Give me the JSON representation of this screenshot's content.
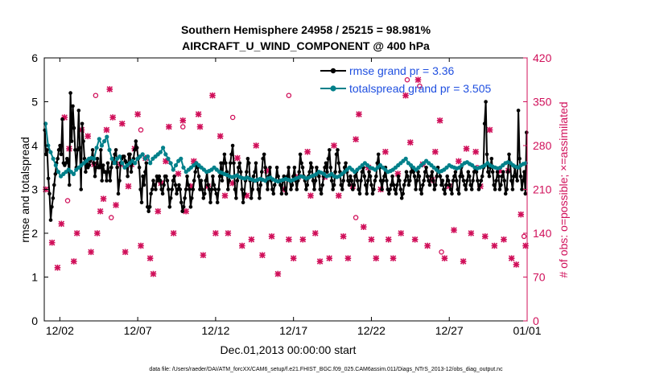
{
  "chart_data": {
    "type": "line",
    "title_line1": "Southern Hemisphere 24958 / 25215 = 98.981%",
    "title_line2": "AIRCRAFT_U_WIND_COMPONENT @ 400 hPa",
    "xlabel": "Dec.01,2013 00:00:00 start",
    "ylabel_left": "rmse and totalspread",
    "ylabel_right": "# of obs: o=possible; ×=assimilated",
    "xlim": [
      0,
      31
    ],
    "ylim_left": [
      0,
      6
    ],
    "ylim_right": [
      0,
      420
    ],
    "x_ticks": [
      1,
      6,
      11,
      16,
      21,
      26,
      31
    ],
    "x_tick_labels": [
      "12/02",
      "12/07",
      "12/12",
      "12/17",
      "12/22",
      "12/27",
      "01/01"
    ],
    "y_ticks_left": [
      "0",
      "1",
      "2",
      "3",
      "4",
      "5",
      "6"
    ],
    "y_ticks_right": [
      "0",
      "70",
      "140",
      "210",
      "280",
      "350",
      "420"
    ],
    "footer": "data file: /Users/raeder/DAI/ATM_forcXX/CAM6_setup/f.e21.FHIST_BGC.f09_025.CAM6assim.011/Diags_NTrS_2013-12/obs_diag_output.nc",
    "colors": {
      "rmse": "#000000",
      "spread": "#00808a",
      "obs": "#d0105a",
      "legend_text": "#1f4fe0"
    },
    "series": [
      {
        "name": "rmse grand pr = 3.36",
        "key": "rmse",
        "values": [
          4.35,
          3.8,
          3.9,
          3.25,
          2.9,
          2.3,
          2.6,
          2.8,
          3.1,
          3.35,
          3.6,
          3.7,
          3.9,
          4.0,
          3.8,
          4.6,
          3.6,
          3.55,
          3.6,
          3.7,
          3.65,
          3.1,
          5.2,
          4.1,
          4.9,
          4.4,
          3.9,
          3.5,
          3.9,
          4.8,
          3.95,
          3.0,
          4.5,
          4.1,
          3.7,
          3.4,
          3.6,
          3.5,
          3.55,
          3.65,
          3.7,
          3.9,
          3.6,
          3.3,
          3.5,
          3.7,
          3.5,
          3.5,
          3.9,
          3.2,
          3.55,
          3.4,
          3.4,
          3.2,
          3.6,
          3.4,
          3.2,
          3.5,
          3.7,
          3.6,
          3.8,
          3.9,
          3.5,
          2.9,
          3.2,
          3.6,
          3.7,
          3.75,
          3.75,
          3.65,
          3.6,
          3.3,
          3.8,
          3.8,
          3.4,
          3.6,
          3.7,
          3.9,
          4.1,
          3.95,
          3.7,
          3.5,
          3.0,
          2.7,
          3.3,
          3.1,
          3.4,
          3.6,
          2.6,
          2.5,
          2.6,
          2.9,
          3.0,
          3.2,
          3.1,
          3.0,
          3.3,
          3.2,
          3.3,
          3.2,
          3.0,
          2.9,
          3.1,
          3.3,
          3.3,
          3.2,
          3.0,
          2.6,
          2.8,
          3.0,
          3.2,
          3.3,
          3.1,
          2.9,
          3.0,
          3.1,
          3.0,
          2.7,
          2.5,
          2.6,
          2.8,
          3.0,
          3.3,
          3.1,
          3.0,
          2.6,
          2.8,
          3.0,
          3.2,
          3.4,
          3.6,
          3.5,
          3.3,
          3.0,
          3.2,
          3.0,
          2.8,
          2.9,
          3.2,
          3.4,
          3.1,
          3.0,
          2.7,
          3.0,
          3.3,
          3.1,
          3.0,
          2.9,
          2.7,
          3.0,
          3.3,
          3.6,
          3.2,
          3.6,
          3.8,
          3.6,
          3.4,
          3.0,
          3.2,
          3.6,
          3.8,
          4.0,
          3.6,
          3.0,
          2.8,
          3.2,
          3.5,
          3.6,
          3.4,
          3.0,
          2.7,
          2.9,
          3.2,
          3.4,
          3.7,
          3.6,
          3.2,
          2.8,
          3.0,
          3.3,
          3.4,
          3.6,
          3.2,
          3.0,
          2.8,
          3.1,
          3.4,
          3.7,
          3.8,
          3.5,
          3.2,
          3.0,
          3.3,
          3.5,
          3.2,
          3.0,
          2.9,
          3.1,
          3.2,
          3.5,
          3.3,
          3.2,
          3.1,
          2.9,
          3.2,
          3.3,
          3.0,
          2.9,
          3.3,
          3.5,
          3.2,
          3.0,
          3.1,
          3.3,
          3.5,
          3.2,
          3.0,
          3.2,
          3.4,
          3.8,
          3.6,
          3.5,
          3.3,
          3.2,
          3.0,
          3.1,
          3.3,
          3.4,
          3.6,
          3.5,
          3.2,
          3.0,
          3.2,
          3.5,
          3.4,
          3.3,
          3.0,
          2.9,
          3.1,
          3.3,
          3.5,
          3.6,
          3.4,
          3.7,
          3.9,
          3.5,
          3.2,
          3.0,
          3.1,
          3.4,
          3.8,
          3.9,
          3.6,
          3.4,
          3.1,
          3.0,
          3.2,
          3.5,
          3.6,
          3.4,
          3.2,
          3.1,
          3.3,
          3.2,
          3.0,
          3.1,
          3.3,
          3.4,
          3.2,
          3.0,
          2.9,
          3.2,
          3.4,
          3.5,
          3.3,
          3.1,
          2.9,
          3.2,
          3.4,
          3.3,
          3.1,
          2.9,
          3.0,
          3.2,
          3.3,
          3.6,
          3.8,
          3.5,
          3.2,
          3.0,
          3.2,
          3.3,
          3.5,
          3.2,
          3.0,
          2.9,
          3.0,
          3.1,
          3.3,
          3.1,
          3.0,
          2.9,
          3.1,
          3.3,
          3.2,
          3.0,
          2.8,
          2.9,
          3.1,
          3.2,
          3.4,
          3.3,
          3.1,
          3.2,
          3.4,
          3.5,
          3.4,
          3.3,
          3.0,
          3.2,
          3.4,
          3.3,
          3.0,
          2.9,
          3.1,
          3.2,
          3.4,
          3.5,
          3.3,
          3.2,
          3.1,
          3.3,
          3.4,
          3.2,
          3.0,
          3.1,
          3.3,
          3.5,
          3.4,
          3.3,
          3.1,
          3.2,
          3.0,
          2.9,
          3.1,
          3.3,
          3.2,
          3.1,
          3.0,
          2.9,
          3.2,
          3.3,
          3.4,
          3.2,
          3.0,
          2.9,
          3.3,
          3.5,
          3.3,
          3.2,
          3.1,
          3.0,
          3.2,
          3.4,
          3.3,
          3.1,
          3.0,
          3.2,
          3.4,
          3.5,
          3.4,
          3.2,
          3.0,
          3.1,
          3.2,
          3.3,
          3.5,
          4.5,
          5.0,
          3.8,
          3.4,
          3.3,
          3.5,
          3.7,
          3.4,
          3.1,
          3.0,
          3.2,
          3.4,
          3.3,
          3.0,
          3.1,
          3.3,
          3.4,
          3.2,
          2.9,
          3.0,
          3.4,
          3.8,
          3.6,
          3.2,
          3.0,
          3.3,
          3.5,
          3.3,
          3.2,
          4.8,
          3.7,
          3.3,
          3.0,
          3.2,
          3.4,
          2.9,
          4.3
        ]
      },
      {
        "name": "totalspread grand pr = 3.505",
        "key": "spread",
        "values": [
          4.5,
          4.0,
          3.85,
          3.7,
          3.55,
          3.4,
          3.3,
          3.35,
          3.4,
          3.45,
          3.4,
          3.35,
          3.45,
          3.5,
          3.55,
          3.6,
          3.65,
          3.7,
          3.72,
          3.7,
          3.95,
          4.15,
          4.0,
          4.1,
          4.2,
          3.9,
          3.7,
          3.6,
          3.7,
          3.75,
          3.6,
          3.5,
          3.55,
          3.6,
          3.65,
          3.6,
          3.7,
          3.75,
          3.8,
          3.7,
          3.75,
          3.6,
          3.7,
          3.75,
          3.8,
          3.85,
          3.95,
          3.8,
          3.7,
          3.6,
          3.45,
          3.55,
          3.65,
          3.7,
          3.5,
          3.4,
          3.45,
          3.5,
          3.55,
          3.6,
          3.55,
          3.5,
          3.45,
          3.4,
          3.42,
          3.45,
          3.5,
          3.45,
          3.4,
          3.38,
          3.35,
          3.33,
          3.3,
          3.28,
          3.3,
          3.32,
          3.28,
          3.26,
          3.25,
          3.27,
          3.24,
          3.22,
          3.2,
          3.22,
          3.24,
          3.22,
          3.2,
          3.25,
          3.27,
          3.23,
          3.2,
          3.18,
          3.2,
          3.22,
          3.24,
          3.22,
          3.2,
          3.22,
          3.25,
          3.27,
          3.3,
          3.28,
          3.25,
          3.27,
          3.3,
          3.32,
          3.35,
          3.4,
          3.38,
          3.35,
          3.3,
          3.32,
          3.35,
          3.3,
          3.28,
          3.3,
          3.35,
          3.4,
          3.45,
          3.5,
          3.45,
          3.4,
          3.45,
          3.5,
          3.55,
          3.6,
          3.55,
          3.5,
          3.48,
          3.45,
          3.5,
          3.55,
          3.5,
          3.45,
          3.4,
          3.42,
          3.45,
          3.5,
          3.55,
          3.6,
          3.65,
          3.7,
          3.6,
          3.55,
          3.5,
          3.45,
          3.5,
          3.55,
          3.6,
          3.65,
          3.6,
          3.55,
          3.5,
          3.45,
          3.4,
          3.42,
          3.45,
          3.5,
          3.55,
          3.52,
          3.5,
          3.48,
          3.5,
          3.55,
          3.6,
          3.62,
          3.58,
          3.55,
          3.5,
          3.48,
          3.5,
          3.52,
          3.55,
          3.6,
          3.55,
          3.52,
          3.5,
          3.48,
          3.5,
          3.55,
          3.6,
          3.62,
          3.6,
          3.55,
          3.52,
          3.5,
          3.55,
          3.58,
          3.6
        ]
      }
    ],
    "obs_markers": [
      [
        0.1,
        210,
        "x"
      ],
      [
        0.5,
        125,
        "x"
      ],
      [
        0.85,
        85,
        "x"
      ],
      [
        1.1,
        155,
        "x"
      ],
      [
        1.3,
        325,
        "x"
      ],
      [
        1.6,
        275,
        "x"
      ],
      [
        1.9,
        95,
        "x"
      ],
      [
        2.1,
        140,
        "x"
      ],
      [
        2.4,
        305,
        "x"
      ],
      [
        2.8,
        295,
        "x"
      ],
      [
        3.0,
        110,
        "x"
      ],
      [
        3.2,
        250,
        "x"
      ],
      [
        3.4,
        140,
        "x"
      ],
      [
        3.6,
        175,
        "x"
      ],
      [
        3.8,
        195,
        "x"
      ],
      [
        4.0,
        305,
        "x"
      ],
      [
        4.2,
        370,
        "x"
      ],
      [
        4.4,
        325,
        "x"
      ],
      [
        4.6,
        185,
        "x"
      ],
      [
        4.9,
        250,
        "x"
      ],
      [
        5.0,
        315,
        "x"
      ],
      [
        5.2,
        110,
        "x"
      ],
      [
        5.4,
        215,
        "x"
      ],
      [
        5.6,
        250,
        "x"
      ],
      [
        5.8,
        275,
        "x"
      ],
      [
        6.0,
        330,
        "x"
      ],
      [
        6.2,
        120,
        "x"
      ],
      [
        6.5,
        260,
        "x"
      ],
      [
        6.8,
        100,
        "x"
      ],
      [
        7.0,
        75,
        "x"
      ],
      [
        7.3,
        175,
        "x"
      ],
      [
        7.5,
        220,
        "x"
      ],
      [
        7.8,
        255,
        "x"
      ],
      [
        8.0,
        310,
        "x"
      ],
      [
        8.3,
        140,
        "x"
      ],
      [
        8.6,
        235,
        "x"
      ],
      [
        8.9,
        320,
        "x"
      ],
      [
        9.1,
        175,
        "x"
      ],
      [
        9.4,
        215,
        "x"
      ],
      [
        9.6,
        255,
        "x"
      ],
      [
        9.9,
        330,
        "x"
      ],
      [
        10.0,
        310,
        "x"
      ],
      [
        10.2,
        105,
        "x"
      ],
      [
        10.5,
        215,
        "x"
      ],
      [
        10.8,
        360,
        "x"
      ],
      [
        11.0,
        140,
        "x"
      ],
      [
        11.3,
        295,
        "x"
      ],
      [
        11.6,
        200,
        "x"
      ],
      [
        11.8,
        140,
        "x"
      ],
      [
        12.1,
        220,
        "x"
      ],
      [
        12.4,
        260,
        "x"
      ],
      [
        12.7,
        120,
        "x"
      ],
      [
        13.0,
        200,
        "x"
      ],
      [
        13.3,
        130,
        "x"
      ],
      [
        13.6,
        280,
        "x"
      ],
      [
        14.0,
        105,
        "x"
      ],
      [
        14.3,
        240,
        "x"
      ],
      [
        14.6,
        135,
        "x"
      ],
      [
        15.0,
        75,
        "x"
      ],
      [
        15.4,
        210,
        "x"
      ],
      [
        15.7,
        130,
        "x"
      ],
      [
        16.0,
        100,
        "x"
      ],
      [
        16.3,
        230,
        "x"
      ],
      [
        16.6,
        130,
        "x"
      ],
      [
        16.9,
        270,
        "x"
      ],
      [
        17.1,
        200,
        "x"
      ],
      [
        17.4,
        140,
        "x"
      ],
      [
        17.7,
        95,
        "x"
      ],
      [
        18.0,
        230,
        "x"
      ],
      [
        18.3,
        100,
        "x"
      ],
      [
        18.6,
        280,
        "x"
      ],
      [
        18.9,
        200,
        "x"
      ],
      [
        19.2,
        135,
        "x"
      ],
      [
        19.5,
        100,
        "x"
      ],
      [
        19.8,
        215,
        "x"
      ],
      [
        20.0,
        290,
        "x"
      ],
      [
        20.2,
        330,
        "x"
      ],
      [
        20.5,
        150,
        "x"
      ],
      [
        20.8,
        245,
        "x"
      ],
      [
        21.0,
        130,
        "x"
      ],
      [
        21.3,
        100,
        "x"
      ],
      [
        21.6,
        210,
        "x"
      ],
      [
        21.9,
        270,
        "x"
      ],
      [
        22.1,
        130,
        "x"
      ],
      [
        22.4,
        100,
        "x"
      ],
      [
        22.7,
        235,
        "x"
      ],
      [
        22.9,
        140,
        "x"
      ],
      [
        23.2,
        360,
        "x"
      ],
      [
        23.5,
        285,
        "x"
      ],
      [
        23.8,
        130,
        "x"
      ],
      [
        24.0,
        385,
        "x"
      ],
      [
        24.3,
        250,
        "x"
      ],
      [
        24.6,
        120,
        "x"
      ],
      [
        24.9,
        225,
        "x"
      ],
      [
        25.1,
        270,
        "x"
      ],
      [
        25.4,
        320,
        "x"
      ],
      [
        25.7,
        100,
        "x"
      ],
      [
        26.0,
        215,
        "x"
      ],
      [
        26.3,
        145,
        "x"
      ],
      [
        26.6,
        255,
        "x"
      ],
      [
        26.9,
        95,
        "x"
      ],
      [
        27.1,
        275,
        "x"
      ],
      [
        27.4,
        140,
        "x"
      ],
      [
        27.7,
        270,
        "x"
      ],
      [
        28.0,
        215,
        "x"
      ],
      [
        28.3,
        135,
        "x"
      ],
      [
        28.6,
        305,
        "x"
      ],
      [
        28.9,
        120,
        "x"
      ],
      [
        29.2,
        240,
        "x"
      ],
      [
        29.5,
        130,
        "x"
      ],
      [
        29.8,
        240,
        "x"
      ],
      [
        30.0,
        100,
        "x"
      ],
      [
        30.3,
        90,
        "x"
      ],
      [
        30.6,
        170,
        "x"
      ],
      [
        30.9,
        120,
        "x"
      ],
      [
        1.5,
        192,
        "o"
      ],
      [
        3.3,
        360,
        "o"
      ],
      [
        4.3,
        165,
        "o"
      ],
      [
        6.2,
        305,
        "o"
      ],
      [
        8.9,
        310,
        "o"
      ],
      [
        12.1,
        325,
        "o"
      ],
      [
        15.7,
        360,
        "o"
      ],
      [
        20.0,
        165,
        "o"
      ],
      [
        23.3,
        385,
        "o"
      ],
      [
        24.1,
        375,
        "o"
      ],
      [
        25.5,
        110,
        "o"
      ],
      [
        27.8,
        245,
        "o"
      ],
      [
        29.2,
        240,
        "o"
      ],
      [
        30.8,
        135,
        "o"
      ]
    ]
  },
  "legend": {
    "rmse_label": "rmse grand pr = 3.36",
    "spread_label": "totalspread grand pr = 3.505"
  }
}
